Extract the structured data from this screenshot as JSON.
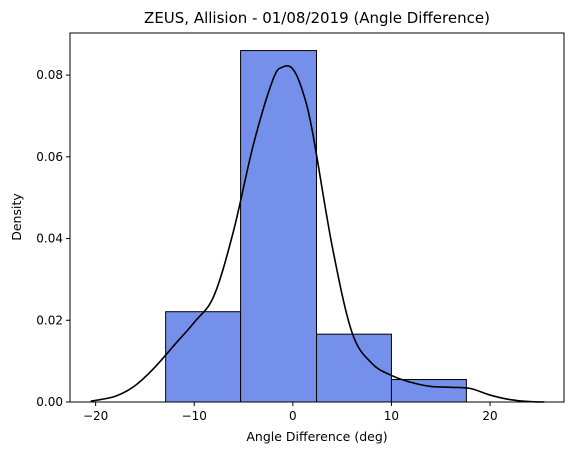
{
  "chart_data": {
    "type": "bar",
    "title": "ZEUS, Allision - 01/08/2019 (Angle Difference)",
    "xlabel": "Angle Difference (deg)",
    "ylabel": "Density",
    "xlim": [
      -22.6,
      27.5
    ],
    "ylim": [
      0,
      0.0903
    ],
    "x_ticks": [
      -20,
      -10,
      0,
      10,
      20
    ],
    "y_ticks": [
      0.0,
      0.02,
      0.04,
      0.06,
      0.08
    ],
    "y_tick_labels": [
      "0.00",
      "0.02",
      "0.04",
      "0.06",
      "0.08"
    ],
    "x_tick_labels": [
      "−20",
      "−10",
      "0",
      "10",
      "20"
    ],
    "grid": false,
    "bars": [
      {
        "x0": -12.9,
        "x1": -5.3,
        "value": 0.0221
      },
      {
        "x0": -5.3,
        "x1": 2.4,
        "value": 0.086
      },
      {
        "x0": 2.4,
        "x1": 10.0,
        "value": 0.0166
      },
      {
        "x0": 10.0,
        "x1": 17.6,
        "value": 0.0055
      }
    ],
    "kde": {
      "x": [
        -20.5,
        -18,
        -16,
        -14,
        -12,
        -10,
        -8,
        -6,
        -4,
        -2,
        -1,
        0,
        1,
        2,
        4,
        6,
        8,
        10,
        12,
        14,
        16,
        18,
        20,
        22,
        24,
        25.5
      ],
      "y": [
        0.0002,
        0.0014,
        0.004,
        0.0085,
        0.014,
        0.0195,
        0.026,
        0.042,
        0.063,
        0.079,
        0.082,
        0.0815,
        0.076,
        0.066,
        0.038,
        0.017,
        0.0095,
        0.0065,
        0.0048,
        0.0038,
        0.0036,
        0.0033,
        0.0017,
        0.0006,
        0.0001,
        0.0
      ]
    },
    "colors": {
      "bar_fill": "#7490eb",
      "bar_edge": "#000000",
      "kde_line": "#000000"
    }
  }
}
